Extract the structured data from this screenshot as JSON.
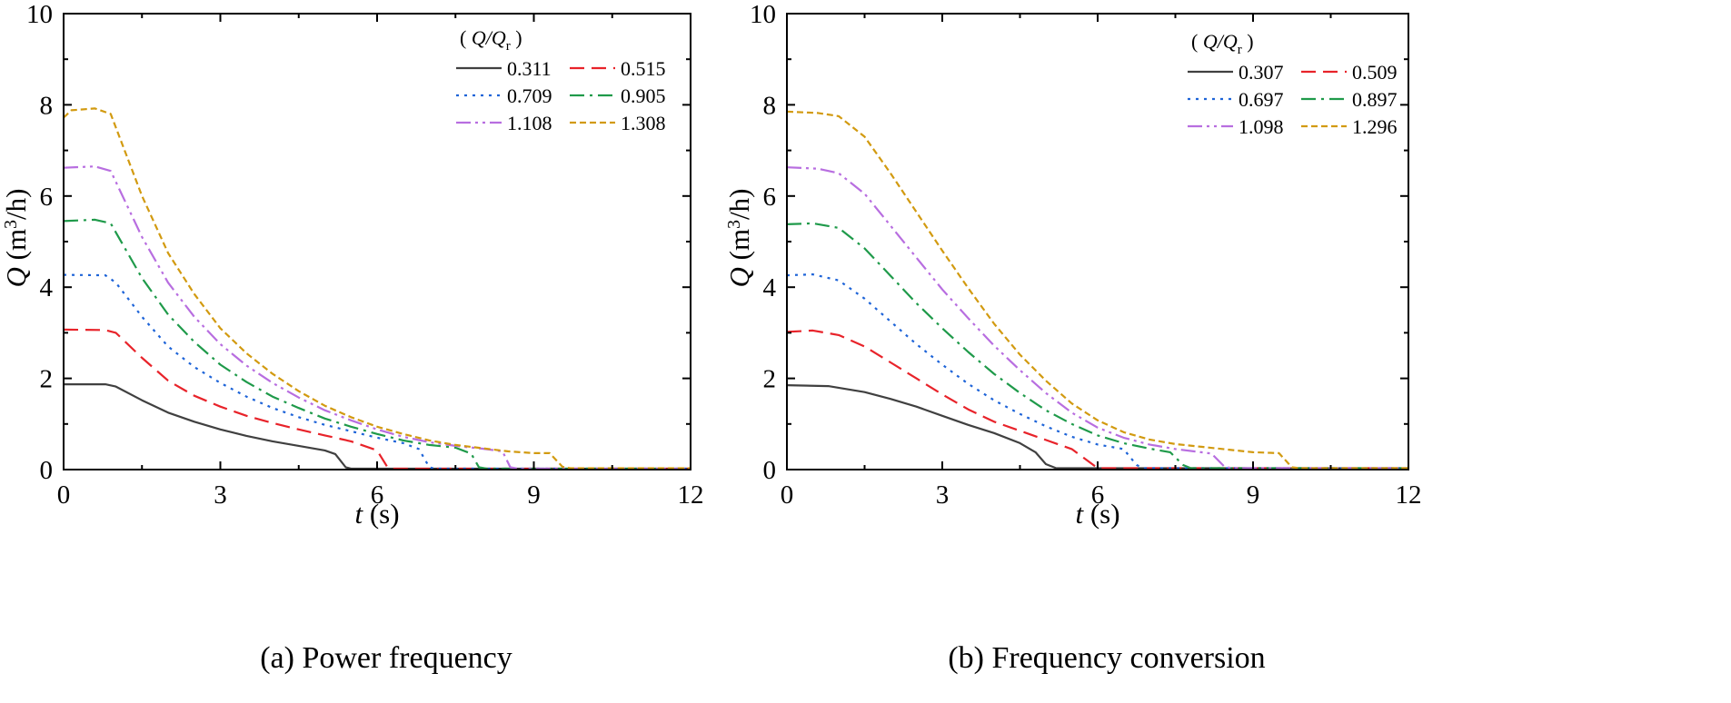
{
  "chart_data": [
    {
      "type": "line",
      "panel_label": "(a) Power frequency",
      "xlabel": "t (s)",
      "xlabel_var": "t",
      "xlabel_unit": "(s)",
      "ylabel": "Q (m3/h)",
      "ylabel_var": "Q",
      "ylabel_unit_pre": "(m",
      "ylabel_unit_sup": "3",
      "ylabel_unit_post": "/h)",
      "xlim": [
        0,
        12
      ],
      "ylim": [
        0,
        10
      ],
      "xticks": [
        0,
        3,
        6,
        9,
        12
      ],
      "yticks": [
        0,
        2,
        4,
        6,
        8,
        10
      ],
      "legend_title": "( Q/Qr )",
      "legend_title_var": "Q/Q",
      "legend_title_sub": "r",
      "legend_position": "top-right",
      "series": [
        {
          "name": "0.311",
          "color": "#404040",
          "dash": "solid",
          "points": [
            [
              0,
              1.87
            ],
            [
              0.8,
              1.87
            ],
            [
              1.0,
              1.82
            ],
            [
              1.5,
              1.52
            ],
            [
              2.0,
              1.25
            ],
            [
              2.5,
              1.05
            ],
            [
              3.0,
              0.88
            ],
            [
              3.5,
              0.74
            ],
            [
              4.0,
              0.62
            ],
            [
              4.5,
              0.52
            ],
            [
              5.0,
              0.42
            ],
            [
              5.2,
              0.34
            ],
            [
              5.4,
              0.05
            ],
            [
              5.5,
              0.02
            ],
            [
              12,
              0.02
            ]
          ]
        },
        {
          "name": "0.515",
          "color": "#e8232a",
          "dash": "dash",
          "points": [
            [
              0,
              3.07
            ],
            [
              0.8,
              3.06
            ],
            [
              1.0,
              3.0
            ],
            [
              1.5,
              2.45
            ],
            [
              2.0,
              1.95
            ],
            [
              2.5,
              1.62
            ],
            [
              3.0,
              1.38
            ],
            [
              3.5,
              1.18
            ],
            [
              4.0,
              1.02
            ],
            [
              4.5,
              0.88
            ],
            [
              5.0,
              0.75
            ],
            [
              5.5,
              0.62
            ],
            [
              6.0,
              0.42
            ],
            [
              6.2,
              0.05
            ],
            [
              6.3,
              0.02
            ],
            [
              12,
              0.02
            ]
          ]
        },
        {
          "name": "0.709",
          "color": "#1e64d8",
          "dash": "dot",
          "points": [
            [
              0,
              4.27
            ],
            [
              0.8,
              4.26
            ],
            [
              1.0,
              4.1
            ],
            [
              1.5,
              3.35
            ],
            [
              2.0,
              2.7
            ],
            [
              2.5,
              2.25
            ],
            [
              3.0,
              1.9
            ],
            [
              3.5,
              1.6
            ],
            [
              4.0,
              1.35
            ],
            [
              4.5,
              1.15
            ],
            [
              5.0,
              0.98
            ],
            [
              5.5,
              0.84
            ],
            [
              6.0,
              0.7
            ],
            [
              6.5,
              0.58
            ],
            [
              6.8,
              0.45
            ],
            [
              7.0,
              0.05
            ],
            [
              7.1,
              0.02
            ],
            [
              12,
              0.02
            ]
          ]
        },
        {
          "name": "0.905",
          "color": "#1f9a4a",
          "dash": "dashdot",
          "points": [
            [
              0,
              5.45
            ],
            [
              0.6,
              5.48
            ],
            [
              0.9,
              5.4
            ],
            [
              1.5,
              4.2
            ],
            [
              2.0,
              3.4
            ],
            [
              2.5,
              2.8
            ],
            [
              3.0,
              2.3
            ],
            [
              3.5,
              1.92
            ],
            [
              4.0,
              1.6
            ],
            [
              4.5,
              1.35
            ],
            [
              5.0,
              1.12
            ],
            [
              5.5,
              0.94
            ],
            [
              6.0,
              0.78
            ],
            [
              6.5,
              0.64
            ],
            [
              7.0,
              0.54
            ],
            [
              7.5,
              0.48
            ],
            [
              7.8,
              0.35
            ],
            [
              7.95,
              0.05
            ],
            [
              8.1,
              0.02
            ],
            [
              12,
              0.02
            ]
          ]
        },
        {
          "name": "1.108",
          "color": "#b86ee0",
          "dash": "dashdotdot",
          "points": [
            [
              0,
              6.62
            ],
            [
              0.6,
              6.65
            ],
            [
              0.9,
              6.55
            ],
            [
              1.5,
              5.1
            ],
            [
              2.0,
              4.1
            ],
            [
              2.5,
              3.35
            ],
            [
              3.0,
              2.75
            ],
            [
              3.5,
              2.28
            ],
            [
              4.0,
              1.9
            ],
            [
              4.5,
              1.58
            ],
            [
              5.0,
              1.3
            ],
            [
              5.5,
              1.08
            ],
            [
              6.0,
              0.88
            ],
            [
              6.5,
              0.72
            ],
            [
              7.0,
              0.6
            ],
            [
              7.5,
              0.52
            ],
            [
              8.0,
              0.46
            ],
            [
              8.4,
              0.4
            ],
            [
              8.55,
              0.05
            ],
            [
              8.7,
              0.02
            ],
            [
              12,
              0.02
            ]
          ]
        },
        {
          "name": "1.308",
          "color": "#d29a10",
          "dash": "shortdash",
          "points": [
            [
              0,
              7.72
            ],
            [
              0.15,
              7.88
            ],
            [
              0.6,
              7.92
            ],
            [
              0.9,
              7.8
            ],
            [
              1.5,
              6.0
            ],
            [
              2.0,
              4.75
            ],
            [
              2.5,
              3.85
            ],
            [
              3.0,
              3.1
            ],
            [
              3.5,
              2.55
            ],
            [
              4.0,
              2.1
            ],
            [
              4.5,
              1.72
            ],
            [
              5.0,
              1.4
            ],
            [
              5.5,
              1.15
            ],
            [
              6.0,
              0.94
            ],
            [
              6.5,
              0.78
            ],
            [
              7.0,
              0.64
            ],
            [
              7.5,
              0.54
            ],
            [
              8.0,
              0.47
            ],
            [
              8.5,
              0.4
            ],
            [
              9.0,
              0.36
            ],
            [
              9.3,
              0.36
            ],
            [
              9.55,
              0.06
            ],
            [
              9.7,
              0.03
            ],
            [
              12,
              0.03
            ]
          ]
        }
      ]
    },
    {
      "type": "line",
      "panel_label": "(b) Frequency conversion",
      "xlabel": "t (s)",
      "xlabel_var": "t",
      "xlabel_unit": "(s)",
      "ylabel": "Q (m3/h)",
      "ylabel_var": "Q",
      "ylabel_unit_pre": "(m",
      "ylabel_unit_sup": "3",
      "ylabel_unit_post": "/h)",
      "xlim": [
        0,
        12
      ],
      "ylim": [
        0,
        10
      ],
      "xticks": [
        0,
        3,
        6,
        9,
        12
      ],
      "yticks": [
        0,
        2,
        4,
        6,
        8,
        10
      ],
      "legend_title": "( Q/Qr )",
      "legend_title_var": "Q/Q",
      "legend_title_sub": "r",
      "legend_position": "top-right",
      "series": [
        {
          "name": "0.307",
          "color": "#404040",
          "dash": "solid",
          "points": [
            [
              0,
              1.85
            ],
            [
              0.8,
              1.83
            ],
            [
              1.5,
              1.7
            ],
            [
              2.0,
              1.55
            ],
            [
              2.5,
              1.38
            ],
            [
              3.0,
              1.18
            ],
            [
              3.5,
              0.98
            ],
            [
              4.0,
              0.8
            ],
            [
              4.5,
              0.58
            ],
            [
              4.8,
              0.38
            ],
            [
              5.0,
              0.12
            ],
            [
              5.2,
              0.03
            ],
            [
              12,
              0.03
            ]
          ]
        },
        {
          "name": "0.509",
          "color": "#e8232a",
          "dash": "dash",
          "points": [
            [
              0,
              3.02
            ],
            [
              0.5,
              3.05
            ],
            [
              1.0,
              2.95
            ],
            [
              1.5,
              2.7
            ],
            [
              2.0,
              2.35
            ],
            [
              2.5,
              2.0
            ],
            [
              3.0,
              1.65
            ],
            [
              3.5,
              1.32
            ],
            [
              4.0,
              1.05
            ],
            [
              4.5,
              0.85
            ],
            [
              5.0,
              0.65
            ],
            [
              5.5,
              0.45
            ],
            [
              5.8,
              0.2
            ],
            [
              6.0,
              0.03
            ],
            [
              12,
              0.03
            ]
          ]
        },
        {
          "name": "0.697",
          "color": "#1e64d8",
          "dash": "dot",
          "points": [
            [
              0,
              4.26
            ],
            [
              0.5,
              4.28
            ],
            [
              1.0,
              4.15
            ],
            [
              1.5,
              3.75
            ],
            [
              2.0,
              3.25
            ],
            [
              2.5,
              2.75
            ],
            [
              3.0,
              2.3
            ],
            [
              3.5,
              1.88
            ],
            [
              4.0,
              1.52
            ],
            [
              4.5,
              1.22
            ],
            [
              5.0,
              0.95
            ],
            [
              5.5,
              0.72
            ],
            [
              6.0,
              0.55
            ],
            [
              6.5,
              0.45
            ],
            [
              6.75,
              0.1
            ],
            [
              6.9,
              0.03
            ],
            [
              12,
              0.03
            ]
          ]
        },
        {
          "name": "0.897",
          "color": "#1f9a4a",
          "dash": "dashdot",
          "points": [
            [
              0,
              5.38
            ],
            [
              0.5,
              5.4
            ],
            [
              1.0,
              5.3
            ],
            [
              1.5,
              4.85
            ],
            [
              2.0,
              4.25
            ],
            [
              2.5,
              3.65
            ],
            [
              3.0,
              3.1
            ],
            [
              3.5,
              2.58
            ],
            [
              4.0,
              2.1
            ],
            [
              4.5,
              1.68
            ],
            [
              5.0,
              1.3
            ],
            [
              5.5,
              1.0
            ],
            [
              6.0,
              0.75
            ],
            [
              6.5,
              0.58
            ],
            [
              7.0,
              0.46
            ],
            [
              7.4,
              0.38
            ],
            [
              7.65,
              0.1
            ],
            [
              7.8,
              0.03
            ],
            [
              12,
              0.03
            ]
          ]
        },
        {
          "name": "1.098",
          "color": "#b86ee0",
          "dash": "dashdotdot",
          "points": [
            [
              0,
              6.63
            ],
            [
              0.6,
              6.6
            ],
            [
              1.0,
              6.5
            ],
            [
              1.5,
              6.05
            ],
            [
              2.0,
              5.35
            ],
            [
              2.5,
              4.65
            ],
            [
              3.0,
              3.95
            ],
            [
              3.5,
              3.32
            ],
            [
              4.0,
              2.72
            ],
            [
              4.5,
              2.18
            ],
            [
              5.0,
              1.68
            ],
            [
              5.5,
              1.25
            ],
            [
              6.0,
              0.92
            ],
            [
              6.5,
              0.7
            ],
            [
              7.0,
              0.55
            ],
            [
              7.5,
              0.45
            ],
            [
              8.0,
              0.38
            ],
            [
              8.2,
              0.35
            ],
            [
              8.45,
              0.06
            ],
            [
              8.6,
              0.03
            ],
            [
              12,
              0.03
            ]
          ]
        },
        {
          "name": "1.296",
          "color": "#d29a10",
          "dash": "shortdash",
          "points": [
            [
              0,
              7.85
            ],
            [
              0.6,
              7.82
            ],
            [
              1.0,
              7.75
            ],
            [
              1.5,
              7.3
            ],
            [
              2.0,
              6.5
            ],
            [
              2.5,
              5.65
            ],
            [
              3.0,
              4.8
            ],
            [
              3.5,
              3.98
            ],
            [
              4.0,
              3.2
            ],
            [
              4.5,
              2.52
            ],
            [
              5.0,
              1.95
            ],
            [
              5.5,
              1.45
            ],
            [
              6.0,
              1.08
            ],
            [
              6.5,
              0.82
            ],
            [
              7.0,
              0.66
            ],
            [
              7.5,
              0.56
            ],
            [
              8.0,
              0.5
            ],
            [
              8.5,
              0.44
            ],
            [
              9.0,
              0.38
            ],
            [
              9.5,
              0.36
            ],
            [
              9.75,
              0.05
            ],
            [
              9.9,
              0.03
            ],
            [
              12,
              0.03
            ]
          ]
        }
      ]
    }
  ]
}
